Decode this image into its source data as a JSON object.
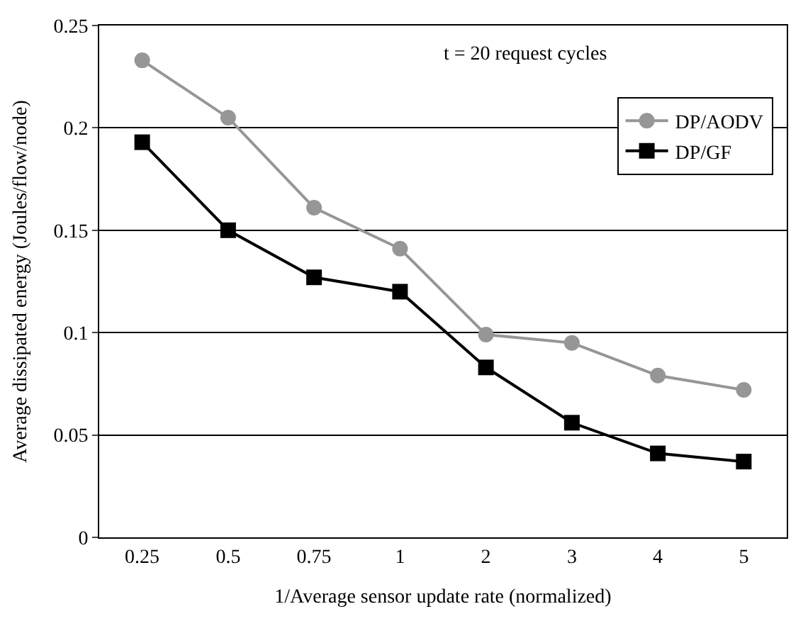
{
  "chart_data": {
    "type": "line",
    "xlabel": "1/Average sensor update rate (normalized)",
    "ylabel": "Average dissipated energy (Joules/flow/node)",
    "categories": [
      "0.25",
      "0.5",
      "0.75",
      "1",
      "2",
      "3",
      "4",
      "5"
    ],
    "series": [
      {
        "name": "DP/AODV",
        "color": "#969696",
        "marker": "circle",
        "values": [
          0.233,
          0.205,
          0.161,
          0.141,
          0.099,
          0.095,
          0.079,
          0.072
        ]
      },
      {
        "name": "DP/GF",
        "color": "#000000",
        "marker": "square",
        "values": [
          0.193,
          0.15,
          0.127,
          0.12,
          0.083,
          0.056,
          0.041,
          0.037
        ]
      }
    ],
    "ylim": [
      0,
      0.25
    ],
    "yticks": [
      0,
      0.05,
      0.1,
      0.15,
      0.2,
      0.25
    ],
    "grid": "y",
    "legend": "top right",
    "line_style": "solid",
    "annotations": [
      "t = 20 request cycles"
    ]
  }
}
